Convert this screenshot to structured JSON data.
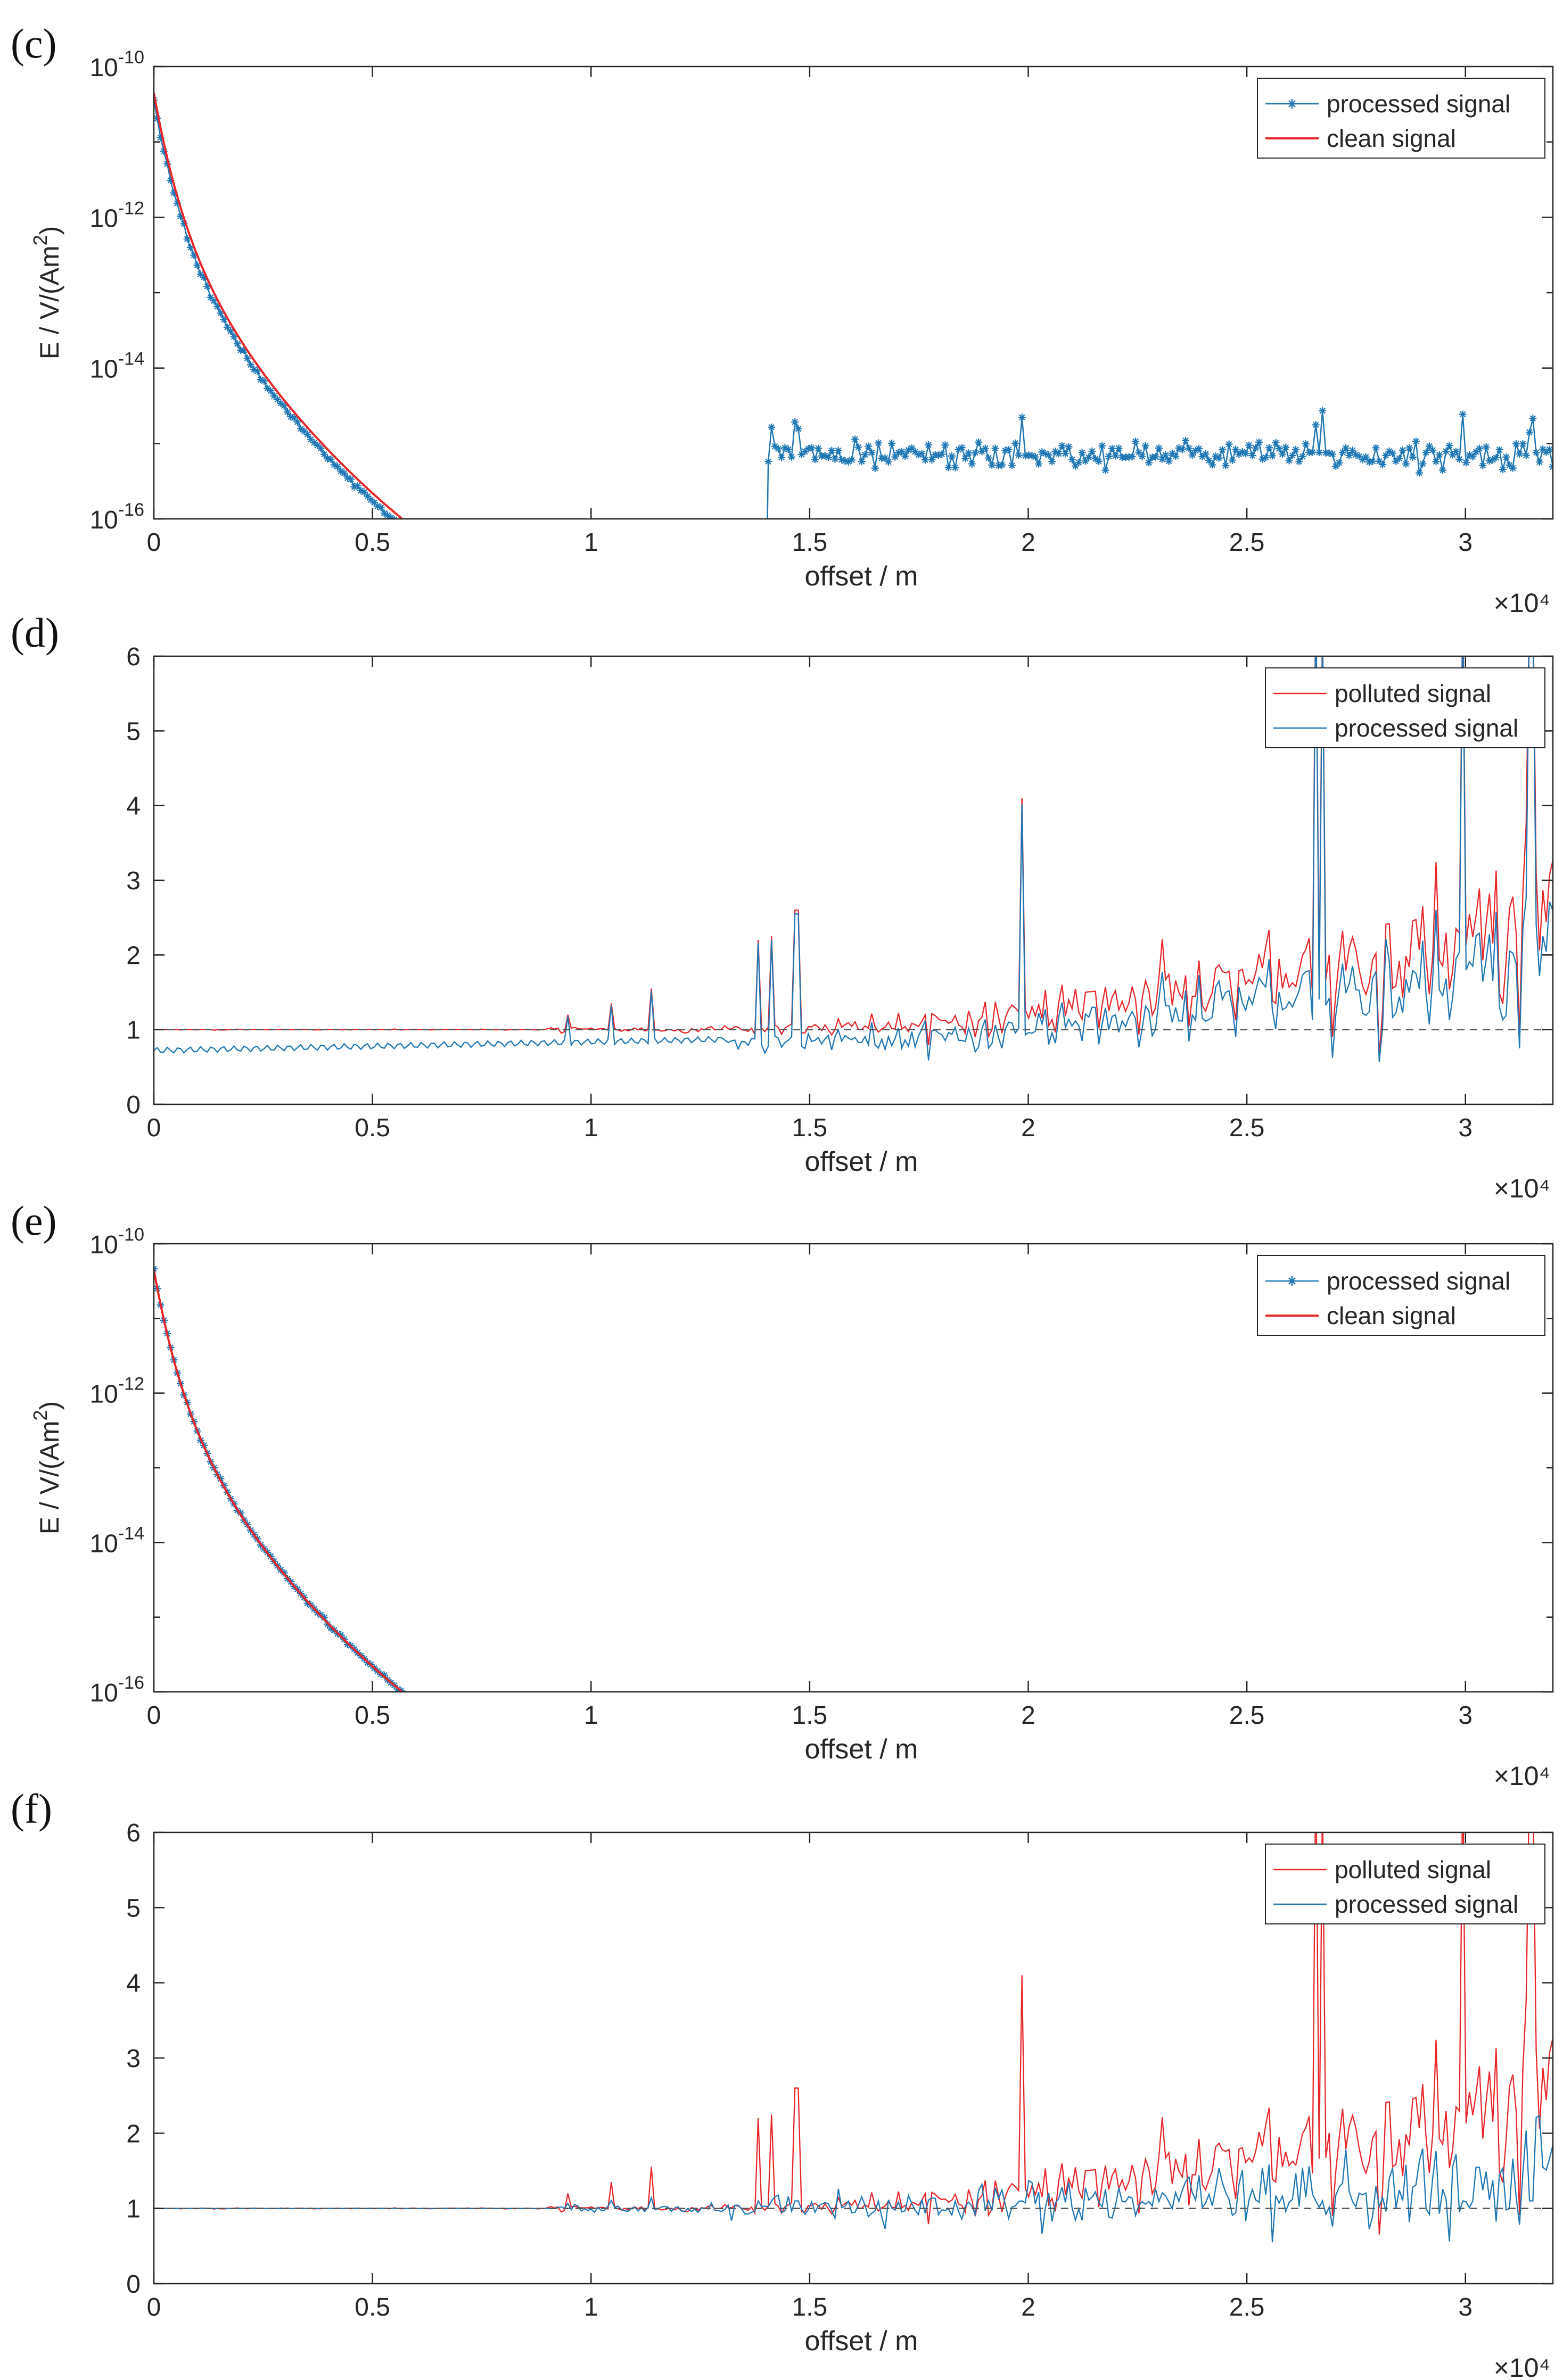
{
  "chart_data": [
    {
      "panel": "(c)",
      "type": "line",
      "yscale": "log",
      "xlabel": "offset / m",
      "ylabel": "E / V/(Am2)",
      "x_multiplier": "×10⁴",
      "xlim": [
        0,
        32000
      ],
      "ylim": [
        1e-16,
        1e-10
      ],
      "x_ticks": [
        0,
        5000,
        10000,
        15000,
        20000,
        25000,
        30000
      ],
      "x_tick_labels": [
        "0",
        "0.5",
        "1",
        "1.5",
        "2",
        "2.5",
        "3"
      ],
      "y_tick_labels": [
        "10-10",
        "10-12",
        "10-14",
        "10-16"
      ],
      "legend_position": "top-right",
      "series": [
        {
          "name": "processed signal",
          "color": "#1f77b4",
          "marker": "star",
          "description_model": "clean*0.8 with noise floor 7e-16"
        },
        {
          "name": "clean signal",
          "color": "#e8262a"
        }
      ]
    },
    {
      "panel": "(d)",
      "type": "line",
      "yscale": "linear",
      "xlabel": "offset / m",
      "x_multiplier": "×10⁴",
      "xlim": [
        0,
        32000
      ],
      "ylim": [
        0,
        6
      ],
      "x_tick_labels": [
        "0",
        "0.5",
        "1",
        "1.5",
        "2",
        "2.5",
        "3"
      ],
      "y_ticks": [
        0,
        1,
        2,
        3,
        4,
        5,
        6
      ],
      "y_tick_labels": [
        "0",
        "1",
        "2",
        "3",
        "4",
        "5",
        "6"
      ],
      "reference_line": 1,
      "legend_position": "top-right",
      "series": [
        {
          "name": "polluted signal",
          "color": "#e8262a"
        },
        {
          "name": "processed signal",
          "color": "#1f77b4"
        }
      ]
    },
    {
      "panel": "(e)",
      "type": "line",
      "yscale": "log",
      "xlabel": "offset / m",
      "ylabel": "E / V/(Am2)",
      "x_multiplier": "×10⁴",
      "xlim": [
        0,
        32000
      ],
      "ylim": [
        1e-16,
        1e-10
      ],
      "x_tick_labels": [
        "0",
        "0.5",
        "1",
        "1.5",
        "2",
        "2.5",
        "3"
      ],
      "y_tick_labels": [
        "10-10",
        "10-12",
        "10-14",
        "10-16"
      ],
      "legend_position": "top-right",
      "series": [
        {
          "name": "processed signal",
          "color": "#1f77b4",
          "marker": "star"
        },
        {
          "name": "clean signal",
          "color": "#e8262a"
        }
      ]
    },
    {
      "panel": "(f)",
      "type": "line",
      "yscale": "linear",
      "xlabel": "offset / m",
      "x_multiplier": "×10⁴",
      "xlim": [
        0,
        32000
      ],
      "ylim": [
        0,
        6
      ],
      "x_tick_labels": [
        "0",
        "0.5",
        "1",
        "1.5",
        "2",
        "2.5",
        "3"
      ],
      "y_tick_labels": [
        "0",
        "1",
        "2",
        "3",
        "4",
        "5",
        "6"
      ],
      "reference_line": 1,
      "legend_position": "top-right",
      "series": [
        {
          "name": "polluted signal",
          "color": "#e8262a"
        },
        {
          "name": "processed signal",
          "color": "#1f77b4"
        }
      ]
    }
  ]
}
